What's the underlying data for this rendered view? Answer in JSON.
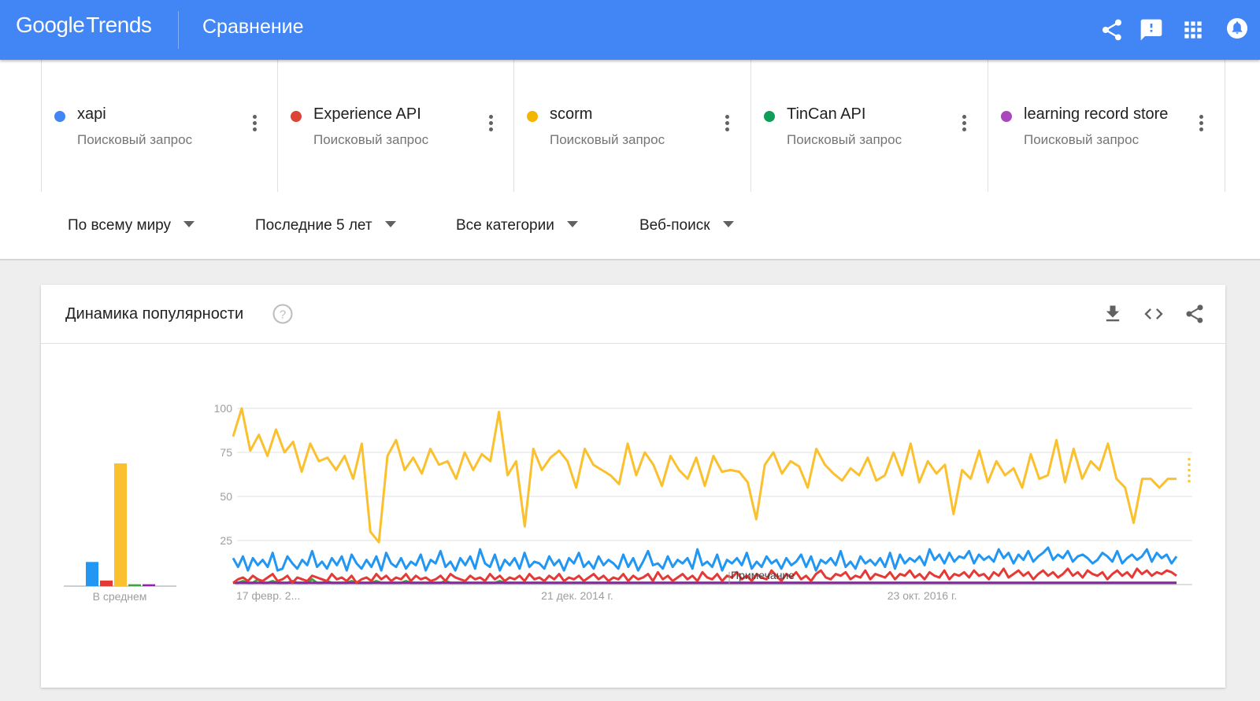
{
  "header": {
    "logo_google": "Google",
    "logo_trends": "Trends",
    "title": "Сравнение",
    "icons": [
      "share-icon",
      "feedback-icon",
      "apps-icon",
      "notifications-icon"
    ]
  },
  "terms": [
    {
      "name": "xapi",
      "type": "Поисковый запрос",
      "color": "#4285f4"
    },
    {
      "name": "Experience API",
      "type": "Поисковый запрос",
      "color": "#db4437"
    },
    {
      "name": "scorm",
      "type": "Поисковый запрос",
      "color": "#f4b400"
    },
    {
      "name": "TinCan API",
      "type": "Поисковый запрос",
      "color": "#0f9d58"
    },
    {
      "name": "learning record store",
      "type": "Поисковый запрос",
      "color": "#ab47bc"
    }
  ],
  "filters": {
    "region": "По всему миру",
    "period": "Последние 5 лет",
    "category": "Все категории",
    "search_type": "Веб-поиск"
  },
  "card": {
    "title": "Динамика популярности",
    "icons": [
      "help-icon",
      "download-icon",
      "embed-icon",
      "share-icon"
    ]
  },
  "chart_data": {
    "type": "line",
    "y_ticks": [
      "100",
      "75",
      "50",
      "25"
    ],
    "ylim": [
      0,
      100
    ],
    "x_ticks": [
      "17 февр. 2...",
      "21 дек. 2014 г.",
      "23 окт. 2016 г."
    ],
    "annotation": "Примечание",
    "average_label": "В среднем",
    "averages": [
      {
        "term": "xapi",
        "value": 13,
        "color": "#2196f3"
      },
      {
        "term": "Experience API",
        "value": 3,
        "color": "#e53935"
      },
      {
        "term": "scorm",
        "value": 66,
        "color": "#fbc02d"
      },
      {
        "term": "TinCan API",
        "value": 1,
        "color": "#43a047"
      },
      {
        "term": "learning record store",
        "value": 1,
        "color": "#8e24aa"
      }
    ],
    "series": [
      {
        "name": "scorm",
        "color": "#fbc02d",
        "anchors": [
          84,
          100,
          76,
          85,
          73,
          88,
          75,
          81,
          64,
          80,
          70,
          72,
          65,
          73,
          60,
          80,
          30,
          24,
          73,
          82,
          65,
          72,
          63,
          77,
          68,
          70,
          60,
          75,
          65,
          74,
          70,
          98,
          62,
          70,
          33,
          77,
          65,
          72,
          76,
          70,
          55,
          77,
          68,
          65,
          62,
          57,
          80,
          62,
          75,
          68,
          56,
          73,
          65,
          60,
          72,
          56,
          73,
          64,
          65,
          64,
          58,
          37,
          68,
          75,
          63,
          70,
          67,
          55,
          77,
          68,
          63,
          59,
          66,
          62,
          72,
          59,
          62,
          75,
          62,
          80,
          58,
          70,
          63,
          68,
          40,
          65,
          60,
          76,
          58,
          70,
          62,
          66,
          55,
          74,
          60,
          62,
          82,
          58,
          77,
          60,
          70,
          65,
          80,
          60,
          55,
          35,
          60,
          60,
          55,
          60,
          60
        ],
        "anchor_spacing": 2.7
      },
      {
        "name": "xapi",
        "color": "#2196f3",
        "values": [
          15,
          10,
          16,
          8,
          15,
          11,
          14,
          10,
          18,
          8,
          9,
          16,
          12,
          9,
          14,
          11,
          19,
          10,
          13,
          9,
          15,
          11,
          16,
          8,
          17,
          12,
          9,
          14,
          10,
          16,
          8,
          18,
          12,
          10,
          15,
          9,
          13,
          11,
          17,
          8,
          14,
          12,
          19,
          10,
          13,
          8,
          15,
          11,
          16,
          9,
          20,
          12,
          10,
          17,
          8,
          14,
          11,
          15,
          9,
          18,
          10,
          13,
          12,
          9,
          16,
          11,
          14,
          8,
          15,
          12,
          18,
          10,
          13,
          9,
          16,
          11,
          14,
          12,
          9,
          17,
          10,
          15,
          8,
          13,
          19,
          11,
          12,
          9,
          16,
          10,
          14,
          12,
          15,
          9,
          20,
          11,
          13,
          10,
          17,
          8,
          14,
          12,
          15,
          11,
          18,
          9,
          13,
          10,
          16,
          12,
          14,
          9,
          15,
          11,
          13,
          17,
          10,
          16,
          8,
          14,
          12,
          15,
          11,
          19,
          10,
          13,
          9,
          16,
          12,
          14,
          11,
          15,
          10,
          18,
          9,
          17,
          12,
          15,
          13,
          16,
          11,
          20,
          14,
          17,
          12,
          18,
          13,
          16,
          15,
          19,
          12,
          17,
          14,
          16,
          13,
          20,
          15,
          18,
          12,
          17,
          14,
          19,
          13,
          16,
          18,
          21,
          14,
          17,
          15,
          19,
          13,
          16,
          17,
          15,
          12,
          14,
          18,
          16,
          13,
          19,
          12,
          15,
          17,
          14,
          16,
          20,
          13,
          18,
          15,
          17,
          12,
          16
        ]
      },
      {
        "name": "Experience API",
        "color": "#e53935",
        "values": [
          1,
          3,
          4,
          2,
          5,
          3,
          2,
          4,
          6,
          2,
          3,
          5,
          1,
          4,
          3,
          2,
          5,
          4,
          3,
          2,
          6,
          3,
          4,
          2,
          5,
          1,
          3,
          4,
          2,
          6,
          3,
          5,
          2,
          4,
          3,
          6,
          2,
          5,
          3,
          4,
          2,
          3,
          5,
          2,
          6,
          4,
          3,
          2,
          5,
          3,
          4,
          2,
          6,
          3,
          5,
          2,
          4,
          3,
          5,
          2,
          6,
          3,
          4,
          2,
          5,
          3,
          6,
          2,
          4,
          3,
          5,
          2,
          4,
          6,
          3,
          5,
          2,
          4,
          3,
          6,
          2,
          5,
          3,
          4,
          6,
          2,
          7,
          3,
          5,
          2,
          4,
          6,
          3,
          5,
          2,
          7,
          4,
          3,
          6,
          2,
          5,
          4,
          7,
          3,
          5,
          2,
          6,
          4,
          3,
          8,
          5,
          2,
          6,
          4,
          7,
          3,
          5,
          2,
          6,
          8,
          4,
          3,
          6,
          5,
          7,
          3,
          5,
          4,
          8,
          3,
          6,
          5,
          4,
          7,
          3,
          6,
          5,
          8,
          4,
          6,
          3,
          7,
          5,
          4,
          8,
          3,
          6,
          5,
          7,
          4,
          8,
          5,
          6,
          3,
          7,
          5,
          9,
          4,
          6,
          8,
          5,
          7,
          3,
          6,
          8,
          5,
          7,
          4,
          6,
          9,
          5,
          7,
          4,
          8,
          6,
          5,
          7,
          3,
          6,
          8,
          5,
          7,
          4,
          9,
          6,
          8,
          5,
          7,
          6,
          8,
          7,
          5
        ]
      },
      {
        "name": "TinCan API",
        "color": "#43a047",
        "values": [
          1,
          1,
          2,
          1,
          1,
          3,
          1,
          1,
          2,
          1,
          1,
          1,
          2,
          1,
          1,
          1,
          3,
          1,
          1,
          2,
          1,
          1,
          1,
          1,
          2,
          1,
          1,
          1,
          1,
          2,
          1,
          1,
          1,
          1,
          1,
          2,
          1,
          1,
          1,
          1,
          1,
          1,
          1,
          2,
          1,
          1,
          1,
          1,
          1,
          1,
          1,
          1,
          1,
          1,
          2,
          1,
          1,
          1,
          1,
          1,
          1,
          1,
          1,
          1,
          1,
          1,
          1,
          1,
          1,
          1,
          1,
          1,
          1,
          1,
          1,
          1,
          1,
          1,
          1,
          1,
          1,
          1,
          1,
          1,
          1,
          1,
          1,
          1,
          1,
          1,
          1,
          1,
          1,
          1,
          1,
          1,
          1,
          1,
          1,
          1,
          1,
          1,
          1,
          1,
          1,
          1,
          1,
          1,
          1,
          1,
          1,
          1,
          1,
          1,
          1,
          1,
          1,
          1,
          1,
          1,
          1,
          1,
          1,
          1,
          1,
          1,
          1,
          1,
          1,
          1,
          1,
          1,
          1,
          1,
          1,
          1,
          1,
          1,
          1,
          1,
          1,
          1,
          1,
          1,
          1,
          1,
          1,
          1,
          1,
          1,
          1,
          1,
          1,
          1,
          1,
          1,
          1,
          1,
          1,
          1,
          1,
          1,
          1,
          1,
          1,
          1,
          1,
          1,
          1,
          1,
          1,
          1,
          1,
          1,
          1,
          1,
          1,
          1,
          1,
          1,
          1,
          1,
          1,
          1,
          1,
          1,
          1,
          1,
          1,
          1,
          1,
          1
        ]
      },
      {
        "name": "learning record store",
        "color": "#8e24aa",
        "values": [
          1,
          1,
          1,
          1,
          1,
          1,
          1,
          1,
          1,
          1,
          1,
          1,
          1,
          1,
          1,
          1,
          1,
          1,
          1,
          1,
          1,
          1,
          1,
          1,
          1,
          1,
          1,
          1,
          1,
          1,
          1,
          1,
          1,
          1,
          1,
          1,
          1,
          1,
          1,
          1,
          1,
          1,
          1,
          1,
          1,
          1,
          1,
          1,
          1,
          1,
          1,
          1,
          1,
          1,
          1,
          1,
          1,
          1,
          1,
          1,
          1,
          1,
          1,
          1,
          1,
          1,
          1,
          1,
          1,
          1,
          1,
          1,
          1,
          1,
          1,
          1,
          1,
          1,
          1,
          1,
          1,
          1,
          1,
          1,
          1,
          1,
          1,
          1,
          1,
          1,
          1,
          1,
          1,
          1,
          1,
          1,
          1,
          1,
          1,
          1,
          1,
          1,
          1,
          1,
          1,
          1,
          1,
          1,
          1,
          1,
          1,
          1,
          1,
          1,
          1,
          1,
          1,
          1,
          1,
          1,
          1,
          1,
          1,
          1,
          1,
          1,
          1,
          1,
          1,
          1,
          1,
          1,
          1,
          1,
          1,
          1,
          1,
          1,
          1,
          1,
          1,
          1,
          1,
          1,
          1,
          1,
          1,
          1,
          1,
          1,
          1,
          1,
          1,
          1,
          1,
          1,
          1,
          1,
          1,
          1,
          1,
          1,
          1,
          1,
          1,
          1,
          1,
          1,
          1,
          1,
          1,
          1,
          1,
          1,
          1,
          1,
          1,
          1,
          1,
          1,
          1,
          1,
          1,
          1,
          1,
          1,
          1,
          1,
          1,
          1,
          1,
          1
        ]
      }
    ]
  }
}
